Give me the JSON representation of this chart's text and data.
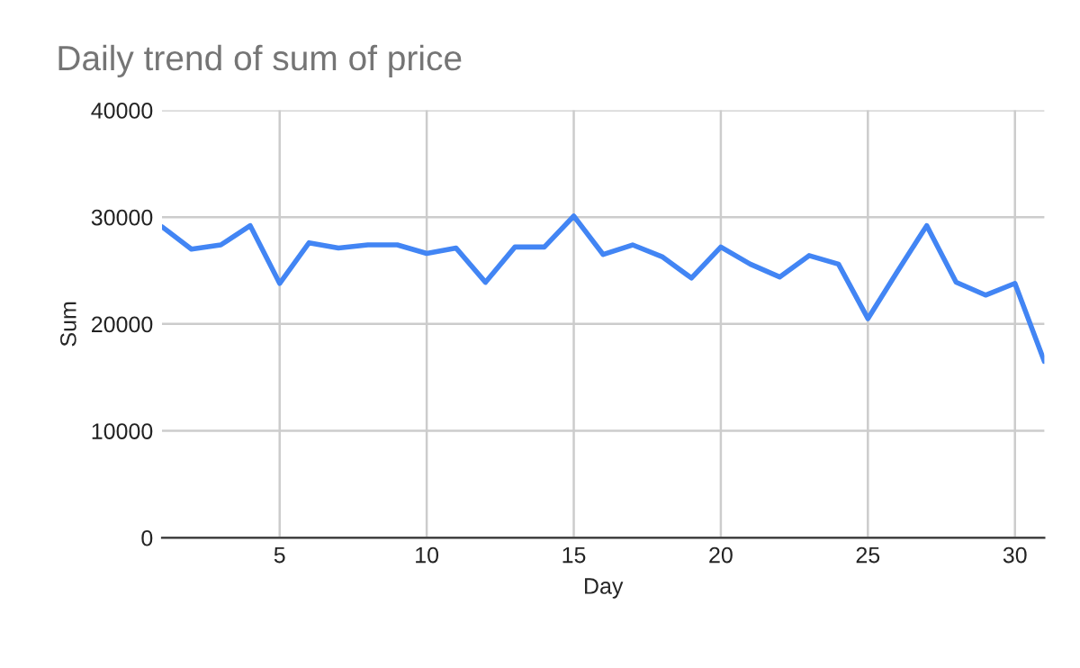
{
  "chart_data": {
    "type": "line",
    "title": "Daily trend of sum of price",
    "xlabel": "Day",
    "ylabel": "Sum",
    "x": [
      1,
      2,
      3,
      4,
      5,
      6,
      7,
      8,
      9,
      10,
      11,
      12,
      13,
      14,
      15,
      16,
      17,
      18,
      19,
      20,
      21,
      22,
      23,
      24,
      25,
      26,
      27,
      28,
      29,
      30,
      31
    ],
    "series": [
      {
        "color": "#4285f4",
        "values": [
          29100,
          27000,
          27400,
          29200,
          23800,
          27600,
          27100,
          27400,
          27400,
          26600,
          27100,
          23900,
          27200,
          27200,
          30100,
          26500,
          27400,
          26300,
          24300,
          27200,
          25600,
          24400,
          26400,
          25600,
          20500,
          24900,
          29200,
          23900,
          22700,
          23800,
          16500
        ]
      }
    ],
    "xlim": [
      1,
      31
    ],
    "xticks": [
      5,
      10,
      15,
      20,
      25,
      30
    ],
    "ylim": [
      0,
      40000
    ],
    "yticks": [
      0,
      10000,
      20000,
      30000,
      40000
    ],
    "grid": true,
    "marker": "none",
    "line_style": "solid"
  }
}
